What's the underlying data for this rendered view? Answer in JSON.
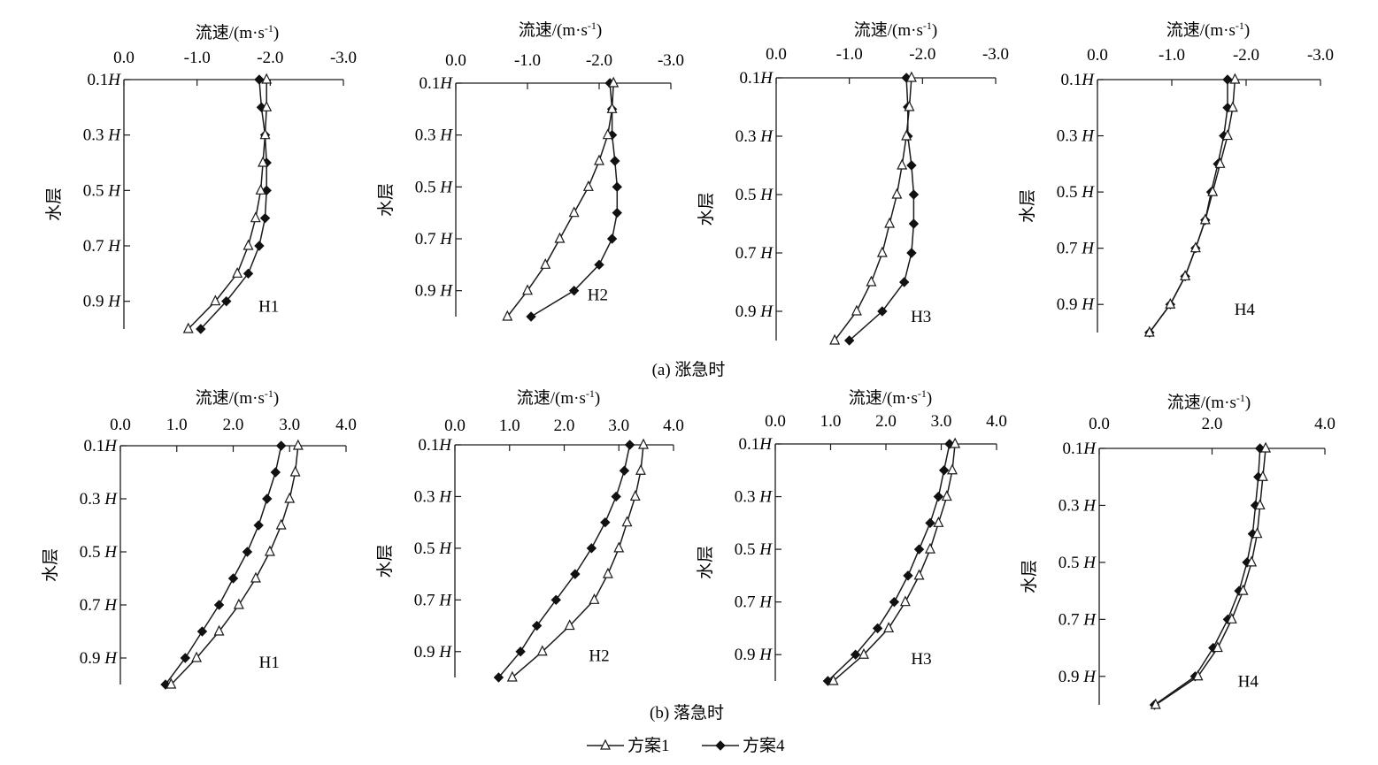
{
  "figure": {
    "caption_a": "(a) 涨急时",
    "caption_b": "(b) 落急时",
    "legend": [
      {
        "label": "方案1",
        "marker": "open-triangle"
      },
      {
        "label": "方案4",
        "marker": "filled-diamond"
      }
    ],
    "colors": {
      "line": "#1a1a1a",
      "background": "#ffffff"
    }
  },
  "chart_data": [
    {
      "type": "line",
      "panel": "a",
      "station": "H1",
      "xlabel": "流速/(m·s-1)",
      "ylabel": "水层",
      "xlim": [
        0,
        -3
      ],
      "xticks": [
        "0.0",
        "-1.0",
        "-2.0",
        "-3.0"
      ],
      "yticks": [
        "0.1H",
        "0.3 H",
        "0.5 H",
        "0.7 H",
        "0.9 H"
      ],
      "depths": [
        0.1,
        0.2,
        0.3,
        0.4,
        0.5,
        0.6,
        0.7,
        0.8,
        0.9,
        1.0
      ],
      "series": [
        {
          "name": "方案1",
          "marker": "triangle",
          "values": [
            -1.95,
            -1.95,
            -1.93,
            -1.9,
            -1.87,
            -1.8,
            -1.7,
            -1.55,
            -1.25,
            -0.88
          ]
        },
        {
          "name": "方案4",
          "marker": "diamond",
          "values": [
            -1.85,
            -1.88,
            -1.93,
            -1.95,
            -1.95,
            -1.93,
            -1.85,
            -1.7,
            -1.4,
            -1.05
          ]
        }
      ]
    },
    {
      "type": "line",
      "panel": "a",
      "station": "H2",
      "xlabel": "流速/(m·s-1)",
      "ylabel": "水层",
      "xlim": [
        0,
        -3
      ],
      "xticks": [
        "0.0",
        "-1.0",
        "-2.0",
        "-3.0"
      ],
      "yticks": [
        "0.1H",
        "0.3 H",
        "0.5 H",
        "0.7 H",
        "0.9 H"
      ],
      "depths": [
        0.1,
        0.2,
        0.3,
        0.4,
        0.5,
        0.6,
        0.7,
        0.8,
        0.9,
        1.0
      ],
      "series": [
        {
          "name": "方案1",
          "marker": "triangle",
          "values": [
            -2.2,
            -2.18,
            -2.12,
            -2.0,
            -1.85,
            -1.65,
            -1.45,
            -1.25,
            -1.0,
            -0.72
          ]
        },
        {
          "name": "方案4",
          "marker": "diamond",
          "values": [
            -2.15,
            -2.18,
            -2.18,
            -2.22,
            -2.25,
            -2.25,
            -2.18,
            -2.0,
            -1.65,
            -1.05
          ]
        }
      ]
    },
    {
      "type": "line",
      "panel": "a",
      "station": "H3",
      "xlabel": "流速/(m·s-1)",
      "ylabel": "水层",
      "xlim": [
        0,
        -3
      ],
      "xticks": [
        "0.0",
        "-1.0",
        "-2.0",
        "-3.0"
      ],
      "yticks": [
        "0.1H",
        "0.3 H",
        "0.5 H",
        "0.7 H",
        "0.9 H"
      ],
      "depths": [
        0.1,
        0.2,
        0.3,
        0.4,
        0.5,
        0.6,
        0.7,
        0.8,
        0.9,
        1.0
      ],
      "series": [
        {
          "name": "方案1",
          "marker": "triangle",
          "values": [
            -1.85,
            -1.82,
            -1.78,
            -1.72,
            -1.65,
            -1.55,
            -1.45,
            -1.3,
            -1.1,
            -0.8
          ]
        },
        {
          "name": "方案4",
          "marker": "diamond",
          "values": [
            -1.78,
            -1.8,
            -1.8,
            -1.85,
            -1.88,
            -1.88,
            -1.85,
            -1.75,
            -1.45,
            -1.0
          ]
        }
      ]
    },
    {
      "type": "line",
      "panel": "a",
      "station": "H4",
      "xlabel": "流速/(m·s-1)",
      "ylabel": "水层",
      "xlim": [
        0,
        -3
      ],
      "xticks": [
        "0.0",
        "-1.0",
        "-2.0",
        "-3.0"
      ],
      "yticks": [
        "0.1H",
        "0.3 H",
        "0.5 H",
        "0.7 H",
        "0.9 H"
      ],
      "depths": [
        0.1,
        0.2,
        0.3,
        0.4,
        0.5,
        0.6,
        0.7,
        0.8,
        0.9,
        1.0
      ],
      "series": [
        {
          "name": "方案1",
          "marker": "triangle",
          "values": [
            -1.85,
            -1.82,
            -1.75,
            -1.65,
            -1.55,
            -1.45,
            -1.32,
            -1.18,
            -0.98,
            -0.7
          ]
        },
        {
          "name": "方案4",
          "marker": "diamond",
          "values": [
            -1.75,
            -1.75,
            -1.7,
            -1.62,
            -1.53,
            -1.45,
            -1.32,
            -1.18,
            -0.98,
            -0.7
          ]
        }
      ]
    },
    {
      "type": "line",
      "panel": "b",
      "station": "H1",
      "xlabel": "流速/(m·s-1)",
      "ylabel": "水层",
      "xlim": [
        0,
        4
      ],
      "xticks": [
        "0.0",
        "1.0",
        "2.0",
        "3.0",
        "4.0"
      ],
      "yticks": [
        "0.1H",
        "0.3 H",
        "0.5 H",
        "0.7 H",
        "0.9 H"
      ],
      "depths": [
        0.1,
        0.2,
        0.3,
        0.4,
        0.5,
        0.6,
        0.7,
        0.8,
        0.9,
        1.0
      ],
      "series": [
        {
          "name": "方案1",
          "marker": "triangle",
          "values": [
            3.15,
            3.1,
            3.0,
            2.85,
            2.65,
            2.4,
            2.1,
            1.75,
            1.35,
            0.9
          ]
        },
        {
          "name": "方案4",
          "marker": "diamond",
          "values": [
            2.85,
            2.75,
            2.6,
            2.45,
            2.25,
            2.0,
            1.75,
            1.45,
            1.15,
            0.8
          ]
        }
      ]
    },
    {
      "type": "line",
      "panel": "b",
      "station": "H2",
      "xlabel": "流速/(m·s-1)",
      "ylabel": "水层",
      "xlim": [
        0,
        4
      ],
      "xticks": [
        "0.0",
        "1.0",
        "2.0",
        "3.0",
        "4.0"
      ],
      "yticks": [
        "0.1H",
        "0.3 H",
        "0.5 H",
        "0.7 H",
        "0.9 H"
      ],
      "depths": [
        0.1,
        0.2,
        0.3,
        0.4,
        0.5,
        0.6,
        0.7,
        0.8,
        0.9,
        1.0
      ],
      "series": [
        {
          "name": "方案1",
          "marker": "triangle",
          "values": [
            3.45,
            3.4,
            3.3,
            3.15,
            3.0,
            2.8,
            2.55,
            2.1,
            1.6,
            1.05
          ]
        },
        {
          "name": "方案4",
          "marker": "diamond",
          "values": [
            3.2,
            3.1,
            2.95,
            2.75,
            2.5,
            2.2,
            1.85,
            1.5,
            1.2,
            0.8
          ]
        }
      ]
    },
    {
      "type": "line",
      "panel": "b",
      "station": "H3",
      "xlabel": "流速/(m·s-1)",
      "ylabel": "水层",
      "xlim": [
        0,
        4
      ],
      "xticks": [
        "0.0",
        "1.0",
        "2.0",
        "3.0",
        "4.0"
      ],
      "yticks": [
        "0.1H",
        "0.3 H",
        "0.5 H",
        "0.7 H",
        "0.9 H"
      ],
      "depths": [
        0.1,
        0.2,
        0.3,
        0.4,
        0.5,
        0.6,
        0.7,
        0.8,
        0.9,
        1.0
      ],
      "series": [
        {
          "name": "方案1",
          "marker": "triangle",
          "values": [
            3.25,
            3.2,
            3.1,
            2.95,
            2.8,
            2.6,
            2.35,
            2.05,
            1.6,
            1.05
          ]
        },
        {
          "name": "方案4",
          "marker": "diamond",
          "values": [
            3.15,
            3.05,
            2.95,
            2.8,
            2.6,
            2.4,
            2.15,
            1.85,
            1.45,
            0.95
          ]
        }
      ]
    },
    {
      "type": "line",
      "panel": "b",
      "station": "H4",
      "xlabel": "流速/(m·s-1)",
      "ylabel": "水层",
      "xlim": [
        0,
        4
      ],
      "xticks": [
        "0.0",
        "2.0",
        "4.0"
      ],
      "yticks": [
        "0.1H",
        "0.3 H",
        "0.5 H",
        "0.7 H",
        "0.9 H"
      ],
      "depths": [
        0.1,
        0.2,
        0.3,
        0.4,
        0.5,
        0.6,
        0.7,
        0.8,
        0.9,
        1.0
      ],
      "series": [
        {
          "name": "方案1",
          "marker": "triangle",
          "values": [
            2.95,
            2.9,
            2.85,
            2.8,
            2.7,
            2.55,
            2.35,
            2.1,
            1.75,
            1.0
          ]
        },
        {
          "name": "方案4",
          "marker": "diamond",
          "values": [
            2.85,
            2.82,
            2.77,
            2.72,
            2.62,
            2.48,
            2.28,
            2.02,
            1.7,
            0.98
          ]
        }
      ]
    }
  ]
}
